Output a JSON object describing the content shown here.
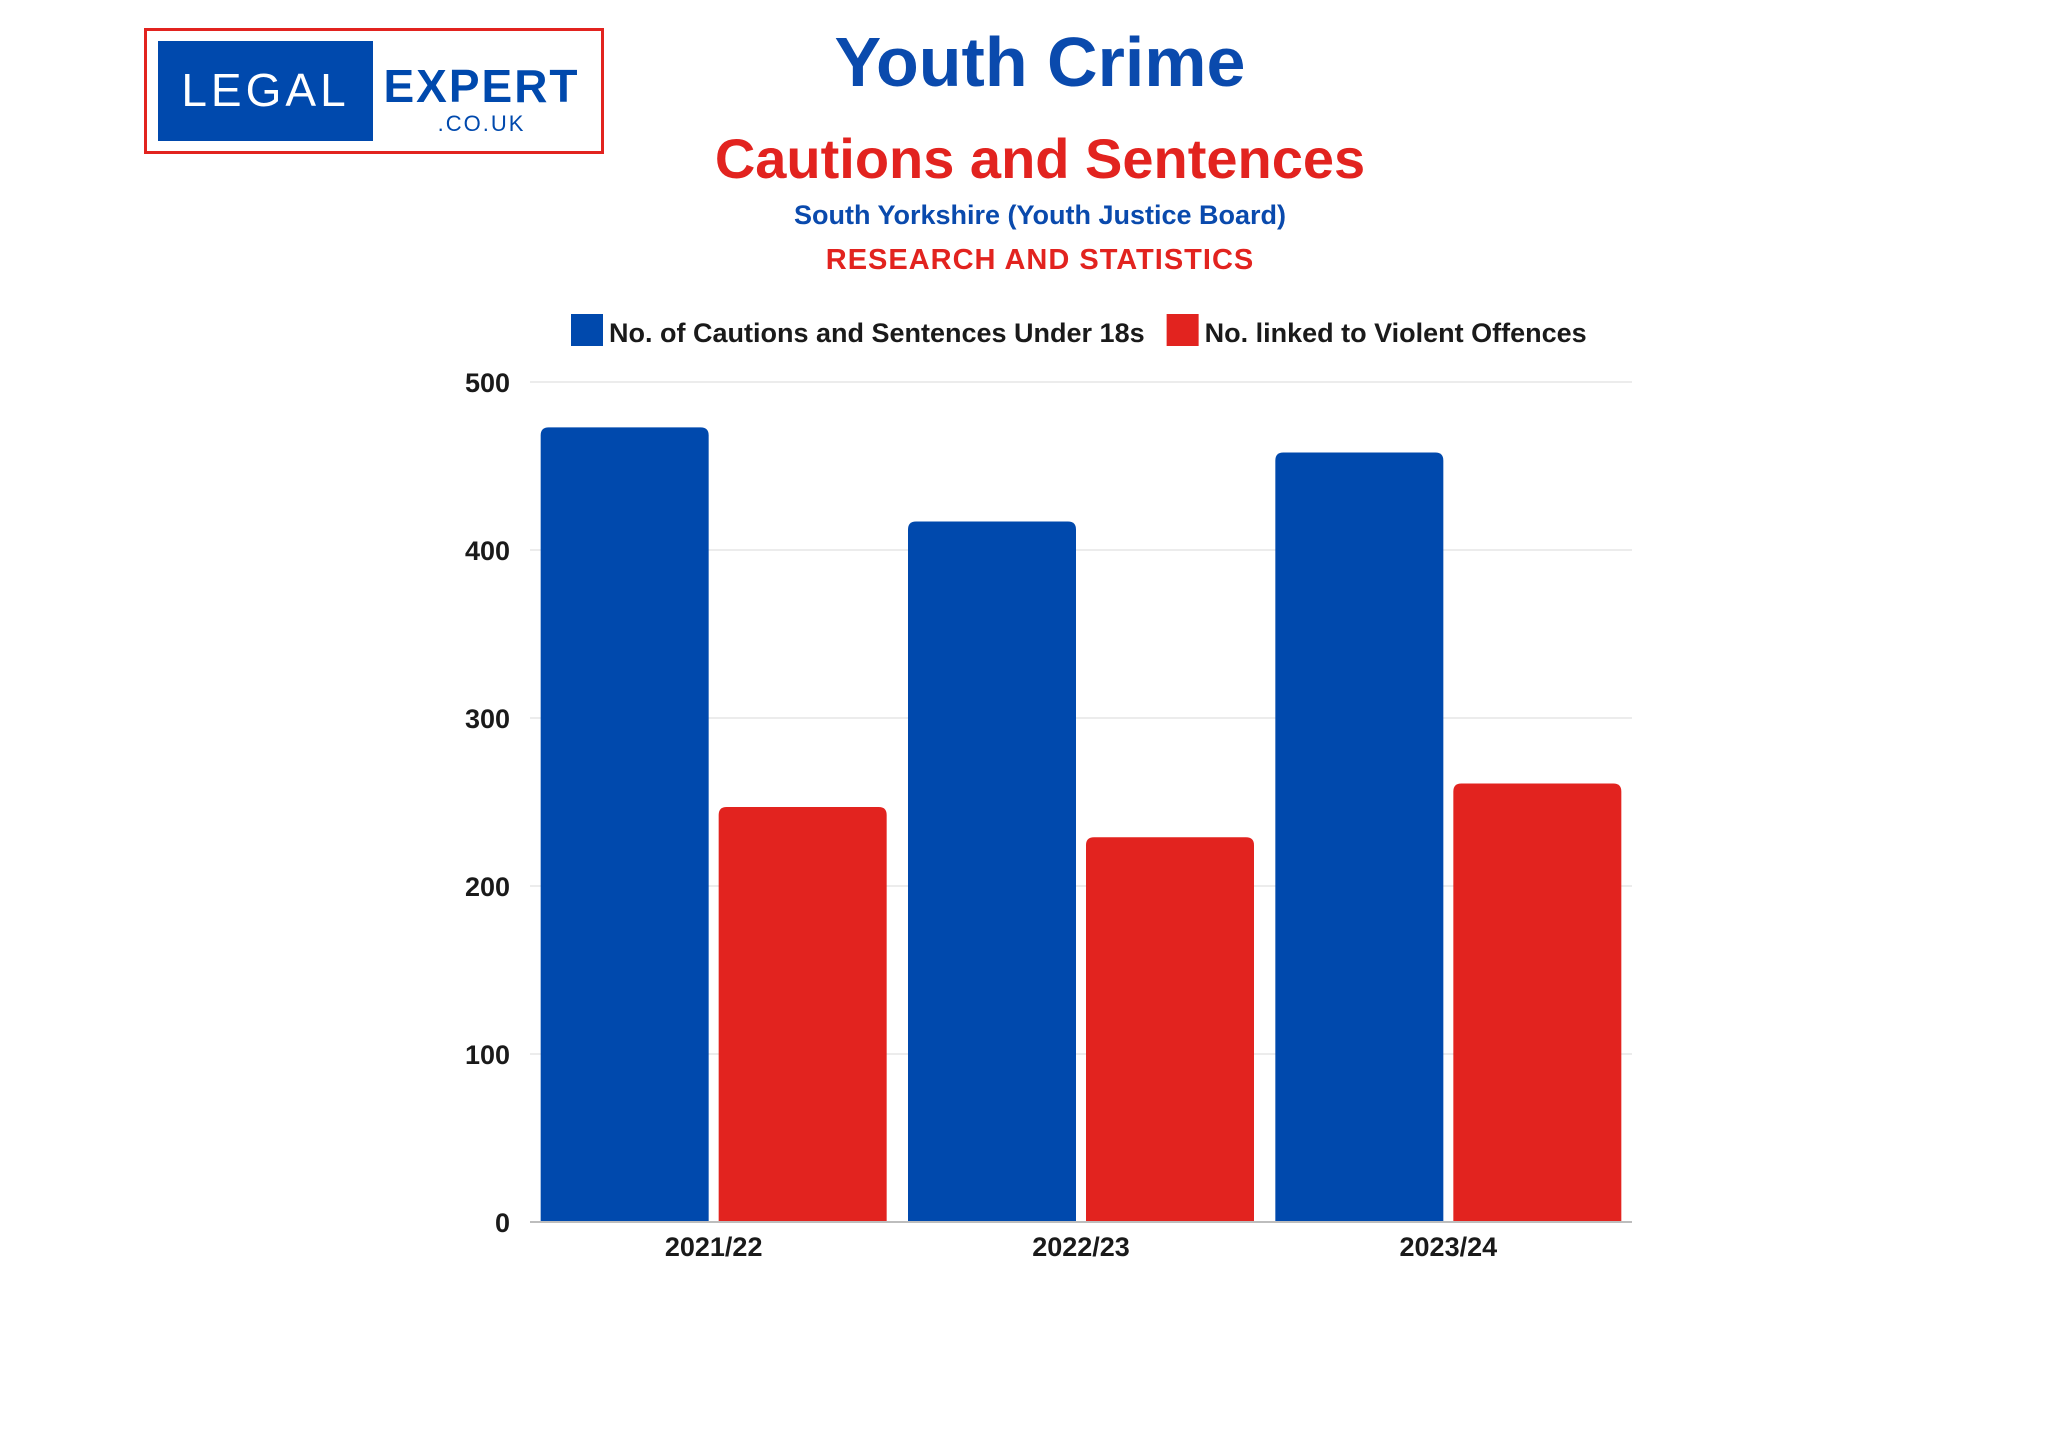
{
  "logo": {
    "left_word": "LEGAL",
    "right_word": "EXPERT",
    "domain": ".CO.UK"
  },
  "header": {
    "title": "Youth Crime",
    "subtitle": "Cautions and Sentences",
    "region": "South Yorkshire (Youth Justice Board)",
    "tagline": "RESEARCH AND STATISTICS"
  },
  "colors": {
    "blue": "#0049ad",
    "red": "#e2231f",
    "grid": "#e6e6e6"
  },
  "chart_data": {
    "type": "bar",
    "categories": [
      "2021/22",
      "2022/23",
      "2023/24"
    ],
    "series": [
      {
        "name": "No. of Cautions and Sentences Under 18s",
        "values": [
          473,
          417,
          458
        ],
        "color": "#0049ad"
      },
      {
        "name": "No. linked to Violent Offences",
        "values": [
          247,
          229,
          261
        ],
        "color": "#e2231f"
      }
    ],
    "ylim": [
      0,
      500
    ],
    "yticks": [
      0,
      100,
      200,
      300,
      400,
      500
    ],
    "grid": true,
    "legend": "top"
  }
}
